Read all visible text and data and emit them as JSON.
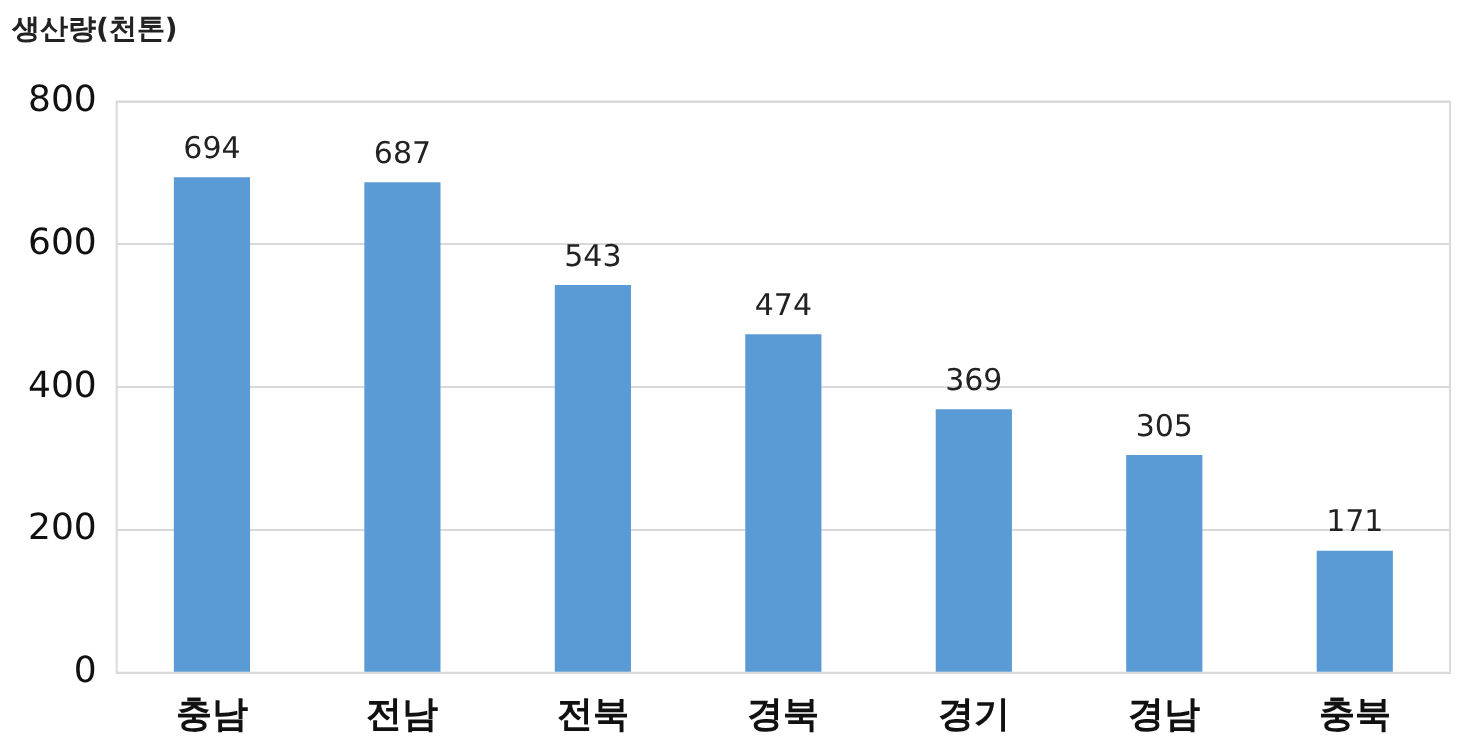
{
  "chart_data": {
    "type": "bar",
    "ylabel": "생산량(천톤)",
    "categories": [
      "충남",
      "전남",
      "전북",
      "경북",
      "경기",
      "경남",
      "충북"
    ],
    "values": [
      694,
      687,
      543,
      474,
      369,
      305,
      171
    ],
    "color": "#5b9bd5",
    "ylim": [
      0,
      800
    ],
    "yticks": [
      0,
      200,
      400,
      600,
      800
    ],
    "grid": "y",
    "data_labels": true,
    "legend": false
  }
}
